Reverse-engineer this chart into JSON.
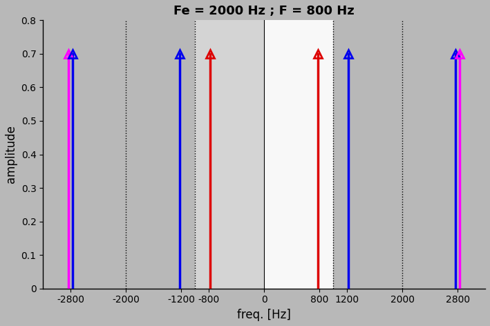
{
  "title": "Fe = 2000 Hz ; F = 800 Hz",
  "xlabel": "freq. [Hz]",
  "ylabel": "amplitude",
  "ylim": [
    0,
    0.8
  ],
  "xlim": [
    -3200,
    3200
  ],
  "amplitude": 0.7,
  "Fe": 2000,
  "F": 800,
  "xticks": [
    -2800,
    -2000,
    -1200,
    -800,
    0,
    800,
    1200,
    2000,
    2800
  ],
  "yticks": [
    0,
    0.1,
    0.2,
    0.3,
    0.4,
    0.5,
    0.6,
    0.7,
    0.8
  ],
  "stems": [
    {
      "freq": -2800,
      "color": "#ff00ff",
      "xoffset": -30
    },
    {
      "freq": -2800,
      "color": "#0000ee",
      "xoffset": 30
    },
    {
      "freq": -1200,
      "color": "#0000ee",
      "xoffset": -20
    },
    {
      "freq": -800,
      "color": "#dd0000",
      "xoffset": 20
    },
    {
      "freq": 800,
      "color": "#dd0000",
      "xoffset": -20
    },
    {
      "freq": 1200,
      "color": "#0000ee",
      "xoffset": 20
    },
    {
      "freq": 2800,
      "color": "#0000ee",
      "xoffset": -30
    },
    {
      "freq": 2800,
      "color": "#ff00ff",
      "xoffset": 30
    }
  ],
  "dotted_lines": [
    -2000,
    -1000,
    1000,
    2000
  ],
  "solid_line_at_zero": true,
  "zone_outer_dark": "#b8b8b8",
  "zone_inner_left": "#d4d4d4",
  "zone_inner_right": "#f8f8f8",
  "bg_color": "#b8b8b8"
}
